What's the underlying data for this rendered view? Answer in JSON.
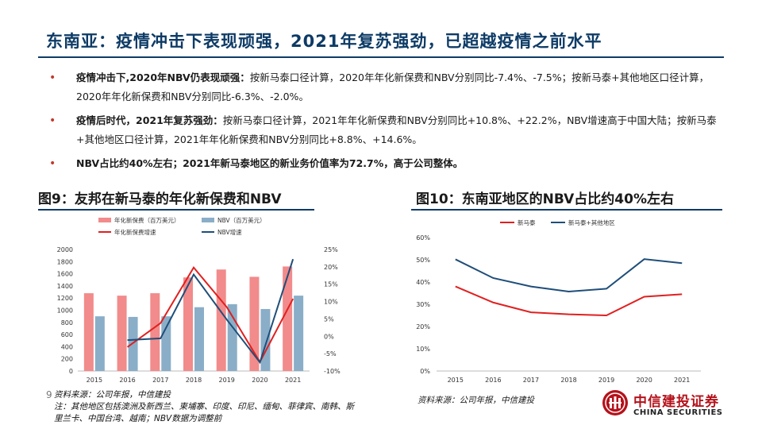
{
  "title": "东南亚：疫情冲击下表现顽强，2021年复苏强劲，已超越疫情之前水平",
  "bullets": [
    {
      "lead": "疫情冲击下,2020年NBV仍表现顽强：",
      "text": "按新马泰口径计算，2020年年化新保费和NBV分别同比-7.4%、-7.5%；按新马泰+其他地区口径计算，2020年年化新保费和NBV分别同比-6.3%、-2.0%。"
    },
    {
      "lead": "疫情后时代，2021年复苏强劲：",
      "text": "按新马泰口径计算，2021年年化新保费和NBV分别同比+10.8%、+22.2%，NBV增速高于中国大陆；按新马泰+其他地区口径计算，2021年年化新保费和NBV分别同比+8.8%、+14.6%。"
    },
    {
      "lead": "NBV占比约40%左右；2021年新马泰地区的新业务价值率为72.7%，高于公司整体。",
      "text": ""
    }
  ],
  "bullet_marker": "•",
  "chart_left_title": "图9：友邦在新马泰的年化新保费和NBV",
  "chart_right_title": "图10：东南亚地区的NBV占比约40%左右",
  "page_number": "9",
  "source_left": "资料来源：公司年报，中信建投",
  "note_left": "注：其他地区包括澳洲及新西兰、柬埔寨、印度、印尼、缅甸、菲律宾、南韩、斯里兰卡、中国台湾、越南；NBV数据为调整前",
  "source_right": "资料来源：公司年报，中信建投",
  "logo": {
    "cn": "中信建投证券",
    "en": "CHINA SECURITIES"
  },
  "colors": {
    "title": "#0d3b66",
    "accent_red": "#b5121b",
    "bar_pink": "#f28b8b",
    "bar_blue": "#8aaec8",
    "line_red": "#e02020",
    "line_navy": "#1f4e79"
  },
  "chart_data": [
    {
      "type": "bar",
      "categories": [
        "2015",
        "2016",
        "2017",
        "2018",
        "2019",
        "2020",
        "2021"
      ],
      "series": [
        {
          "name": "年化新保费（百万美元）",
          "kind": "bar",
          "axis": "left",
          "values": [
            1280,
            1240,
            1280,
            1540,
            1670,
            1550,
            1720
          ]
        },
        {
          "name": "NBV（百万美元）",
          "kind": "bar",
          "axis": "left",
          "values": [
            900,
            890,
            900,
            1050,
            1100,
            1020,
            1240
          ]
        },
        {
          "name": "年化新保费增速",
          "kind": "line",
          "axis": "right",
          "values": [
            null,
            -3.1,
            3.8,
            19.8,
            8.4,
            -7.4,
            10.8
          ]
        },
        {
          "name": "NBV增速",
          "kind": "line",
          "axis": "right",
          "values": [
            null,
            -1.1,
            -0.6,
            17.8,
            4.8,
            -7.5,
            22.2
          ]
        }
      ],
      "ylim_left": [
        0,
        2000
      ],
      "yticks_left": [
        "0",
        "200",
        "400",
        "600",
        "800",
        "1000",
        "1200",
        "1400",
        "1600",
        "1800",
        "2000"
      ],
      "ylim_right": [
        -10,
        25
      ],
      "yticks_right": [
        "-10%",
        "-5%",
        "0%",
        "5%",
        "10%",
        "15%",
        "20%",
        "25%"
      ],
      "legend_position": "top"
    },
    {
      "type": "line",
      "categories": [
        "2015",
        "2016",
        "2017",
        "2018",
        "2019",
        "2020",
        "2021"
      ],
      "series": [
        {
          "name": "新马泰",
          "values": [
            38.0,
            30.8,
            26.4,
            25.5,
            25.0,
            33.4,
            34.5
          ]
        },
        {
          "name": "新马泰+其他地区",
          "values": [
            50.2,
            41.8,
            38.0,
            35.7,
            37.0,
            50.3,
            48.5
          ]
        }
      ],
      "ylim": [
        0,
        60
      ],
      "yticks": [
        "0%",
        "10%",
        "20%",
        "30%",
        "40%",
        "50%",
        "60%"
      ],
      "legend_position": "top"
    }
  ]
}
